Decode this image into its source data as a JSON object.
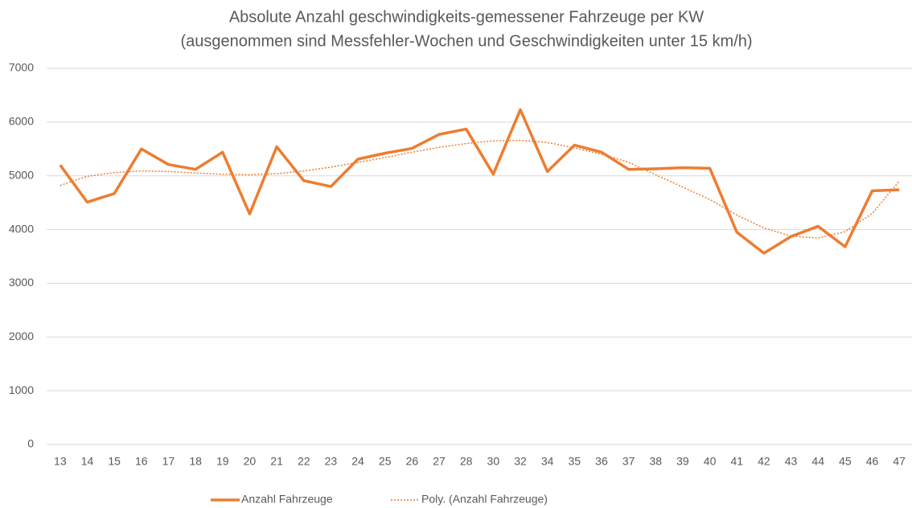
{
  "chart_data": {
    "type": "line",
    "title": "Absolute Anzahl geschwindigkeits-gemessener Fahrzeuge per KW",
    "subtitle": "(ausgenommen sind Messfehler-Wochen und Geschwindigkeiten unter 15 km/h)",
    "categories": [
      "13",
      "14",
      "15",
      "16",
      "17",
      "18",
      "19",
      "20",
      "21",
      "22",
      "23",
      "24",
      "25",
      "26",
      "27",
      "28",
      "30",
      "32",
      "34",
      "35",
      "36",
      "37",
      "38",
      "39",
      "40",
      "41",
      "42",
      "43",
      "44",
      "45",
      "46",
      "47"
    ],
    "series": [
      {
        "name": "Anzahl Fahrzeuge",
        "color": "#ed7d31",
        "style": "solid",
        "values": [
          5200,
          4510,
          4670,
          5500,
          5210,
          5120,
          5440,
          4290,
          5540,
          4910,
          4800,
          5310,
          5420,
          5510,
          5770,
          5870,
          5030,
          6230,
          5080,
          5570,
          5440,
          5120,
          5130,
          5150,
          5140,
          3950,
          3560,
          3870,
          4060,
          3680,
          4720,
          4740
        ]
      },
      {
        "name": "Poly. (Anzahl Fahrzeuge)",
        "color": "#ed7d31",
        "style": "dotted",
        "values": [
          4820,
          4990,
          5060,
          5090,
          5080,
          5050,
          5030,
          5020,
          5040,
          5090,
          5160,
          5250,
          5340,
          5440,
          5530,
          5600,
          5650,
          5660,
          5620,
          5520,
          5400,
          5250,
          5020,
          4790,
          4560,
          4270,
          4030,
          3880,
          3840,
          3960,
          4300,
          4900
        ]
      }
    ],
    "ylim": [
      0,
      7000
    ],
    "yticks": [
      0,
      1000,
      2000,
      3000,
      4000,
      5000,
      6000,
      7000
    ],
    "grid": true,
    "legend": "bottom"
  }
}
